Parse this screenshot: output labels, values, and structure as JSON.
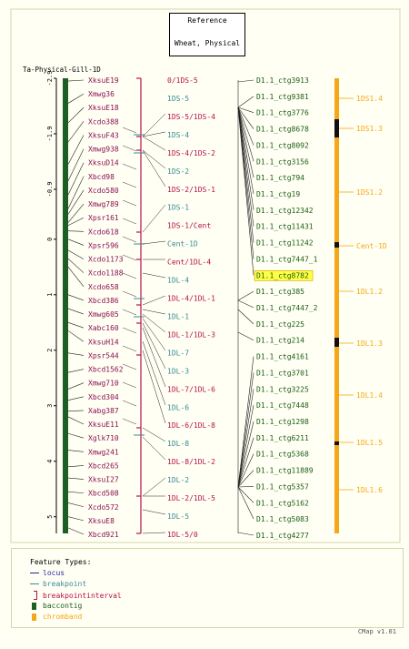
{
  "reference": {
    "line1": "Reference",
    "line2": "Wheat, Physical"
  },
  "map_title": "Ta-Physical-Gill-1D",
  "scale_ticks": [
    "-2.9",
    "-1.9",
    "-0.9",
    "0",
    "1",
    "2",
    "3",
    "4",
    "5"
  ],
  "loci": [
    {
      "label": "XksuE19",
      "axis": -2.85
    },
    {
      "label": "Xmwg36",
      "axis": -2.45
    },
    {
      "label": "XksuE18",
      "axis": -2.1
    },
    {
      "label": "Xcdo388",
      "axis": -1.75
    },
    {
      "label": "XksuF43",
      "axis": -1.35
    },
    {
      "label": "Xmwg938",
      "axis": -1.05
    },
    {
      "label": "XksuD14",
      "axis": -0.8
    },
    {
      "label": "Xbcd98",
      "axis": -0.55
    },
    {
      "label": "Xcdo580",
      "axis": -0.45
    },
    {
      "label": "Xmwg789",
      "axis": -0.3
    },
    {
      "label": "Xpsr161",
      "axis": -0.25
    },
    {
      "label": "Xcdo618",
      "axis": -0.15
    },
    {
      "label": "Xpsr596",
      "axis": 0.0
    },
    {
      "label": "Xcdo1173",
      "axis": 0.2
    },
    {
      "label": "Xcdo1188",
      "axis": 0.35
    },
    {
      "label": "Xcdo658",
      "axis": 0.5
    },
    {
      "label": "Xbcd386",
      "axis": 1.0
    },
    {
      "label": "Xmwg605",
      "axis": 1.25
    },
    {
      "label": "Xabc160",
      "axis": 1.5
    },
    {
      "label": "XksuH14",
      "axis": 1.65
    },
    {
      "label": "Xpsr544",
      "axis": 2.05
    },
    {
      "label": "Xbcd1562",
      "axis": 2.4
    },
    {
      "label": "Xmwg710",
      "axis": 2.7
    },
    {
      "label": "Xbcd304",
      "axis": 2.9
    },
    {
      "label": "Xabg387",
      "axis": 3.1
    },
    {
      "label": "XksuE11",
      "axis": 3.2
    },
    {
      "label": "Xglk710",
      "axis": 3.5
    },
    {
      "label": "Xmwg241",
      "axis": 3.8
    },
    {
      "label": "Xbcd265",
      "axis": 4.1
    },
    {
      "label": "XksuI27",
      "axis": 4.3
    },
    {
      "label": "Xbcd508",
      "axis": 4.55
    },
    {
      "label": "Xcdo572",
      "axis": 4.75
    },
    {
      "label": "XksuE8",
      "axis": 5.0
    },
    {
      "label": "Xbcd921",
      "axis": 5.2
    }
  ],
  "bins": [
    {
      "label": "0/1DS-5",
      "color": "#b8104a",
      "type": "interval"
    },
    {
      "label": "1DS-5",
      "color": "#3a8a96",
      "type": "breakpoint"
    },
    {
      "label": "1DS-5/1DS-4",
      "color": "#b8104a",
      "type": "interval"
    },
    {
      "label": "1DS-4",
      "color": "#3a8a96",
      "type": "breakpoint"
    },
    {
      "label": "1DS-4/1DS-2",
      "color": "#b8104a",
      "type": "interval"
    },
    {
      "label": "1DS-2",
      "color": "#3a8a96",
      "type": "breakpoint"
    },
    {
      "label": "1DS-2/1DS-1",
      "color": "#b8104a",
      "type": "interval"
    },
    {
      "label": "1DS-1",
      "color": "#3a8a96",
      "type": "breakpoint"
    },
    {
      "label": "1DS-1/Cent",
      "color": "#b8104a",
      "type": "interval"
    },
    {
      "label": "Cent-1D",
      "color": "#3a8a96",
      "type": "breakpoint"
    },
    {
      "label": "Cent/1DL-4",
      "color": "#b8104a",
      "type": "interval"
    },
    {
      "label": "1DL-4",
      "color": "#3a8a96",
      "type": "breakpoint"
    },
    {
      "label": "1DL-4/1DL-1",
      "color": "#b8104a",
      "type": "interval"
    },
    {
      "label": "1DL-1",
      "color": "#3a8a96",
      "type": "breakpoint"
    },
    {
      "label": "1DL-1/1DL-3",
      "color": "#b8104a",
      "type": "interval"
    },
    {
      "label": "1DL-7",
      "color": "#3a8a96",
      "type": "breakpoint"
    },
    {
      "label": "1DL-3",
      "color": "#3a8a96",
      "type": "breakpoint"
    },
    {
      "label": "1DL-7/1DL-6",
      "color": "#b8104a",
      "type": "interval"
    },
    {
      "label": "1DL-6",
      "color": "#3a8a96",
      "type": "breakpoint"
    },
    {
      "label": "1DL-6/1DL-8",
      "color": "#b8104a",
      "type": "interval"
    },
    {
      "label": "1DL-8",
      "color": "#3a8a96",
      "type": "breakpoint"
    },
    {
      "label": "1DL-8/1DL-2",
      "color": "#b8104a",
      "type": "interval"
    },
    {
      "label": "1DL-2",
      "color": "#3a8a96",
      "type": "breakpoint"
    },
    {
      "label": "1DL-2/1DL-5",
      "color": "#b8104a",
      "type": "interval"
    },
    {
      "label": "1DL-5",
      "color": "#3a8a96",
      "type": "breakpoint"
    },
    {
      "label": "1DL-5/0",
      "color": "#b8104a",
      "type": "interval"
    }
  ],
  "contigs": [
    {
      "label": "D1.1_ctg3913",
      "highlight": false
    },
    {
      "label": "D1.1_ctg9381",
      "highlight": false
    },
    {
      "label": "D1.1_ctg3776",
      "highlight": false
    },
    {
      "label": "D1.1_ctg8678",
      "highlight": false
    },
    {
      "label": "D1.1_ctg8092",
      "highlight": false
    },
    {
      "label": "D1.1_ctg3156",
      "highlight": false
    },
    {
      "label": "D1.1_ctg794",
      "highlight": false
    },
    {
      "label": "D1.1_ctg19",
      "highlight": false
    },
    {
      "label": "D1.1_ctg12342",
      "highlight": false
    },
    {
      "label": "D1.1_ctg11431",
      "highlight": false
    },
    {
      "label": "D1.1_ctg11242",
      "highlight": false
    },
    {
      "label": "D1.1_ctg7447_1",
      "highlight": false
    },
    {
      "label": "D1.1_ctg8782",
      "highlight": true
    },
    {
      "label": "D1.1_ctg385",
      "highlight": false
    },
    {
      "label": "D1.1_ctg7447_2",
      "highlight": false
    },
    {
      "label": "D1.1_ctg225",
      "highlight": false
    },
    {
      "label": "D1.1_ctg214",
      "highlight": false
    },
    {
      "label": "D1.1_ctg4161",
      "highlight": false
    },
    {
      "label": "D1.1_ctg3701",
      "highlight": false
    },
    {
      "label": "D1.1_ctg3225",
      "highlight": false
    },
    {
      "label": "D1.1_ctg7448",
      "highlight": false
    },
    {
      "label": "D1.1_ctg1298",
      "highlight": false
    },
    {
      "label": "D1.1_ctg6211",
      "highlight": false
    },
    {
      "label": "D1.1_ctg5368",
      "highlight": false
    },
    {
      "label": "D1.1_ctg11889",
      "highlight": false
    },
    {
      "label": "D1.1_ctg5357",
      "highlight": false
    },
    {
      "label": "D1.1_ctg5162",
      "highlight": false
    },
    {
      "label": "D1.1_ctg5083",
      "highlight": false
    },
    {
      "label": "D1.1_ctg4277",
      "highlight": false
    }
  ],
  "chrombands": [
    {
      "label": "1DS1.4"
    },
    {
      "label": "1DS1.3"
    },
    {
      "label": "1DS1.2"
    },
    {
      "label": "Cent-1D"
    },
    {
      "label": "1DL1.2"
    },
    {
      "label": "1DL1.3"
    },
    {
      "label": "1DL1.4"
    },
    {
      "label": "1DL1.5"
    },
    {
      "label": "1DL1.6"
    }
  ],
  "legend": {
    "title": "Feature Types:",
    "items": [
      {
        "label": "locus",
        "color": "#2a2aa0",
        "symbol": "line"
      },
      {
        "label": "breakpoint",
        "color": "#3a8a96",
        "symbol": "line"
      },
      {
        "label": "breakpointinterval",
        "color": "#b8104a",
        "symbol": "bracket"
      },
      {
        "label": "baccontig",
        "color": "#1d5e22",
        "symbol": "box"
      },
      {
        "label": "chromband",
        "color": "#f5a817",
        "symbol": "box"
      }
    ]
  },
  "footer": "CMap v1.01",
  "colors": {
    "locus_text": "#8a1050",
    "contig_text": "#1a5e12",
    "chromband_text": "#f5a817",
    "axis": "#1d5e22",
    "frame": "#d8d6a8",
    "highlight": "#ffff44"
  }
}
